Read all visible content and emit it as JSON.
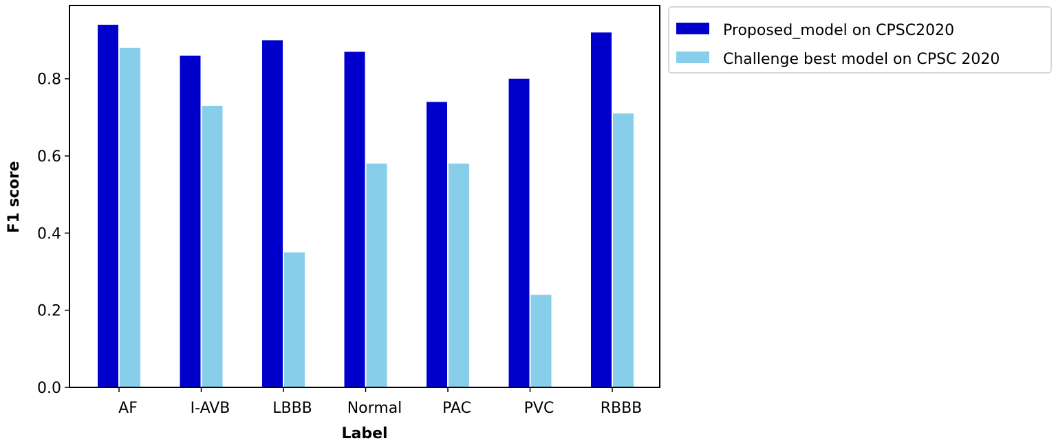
{
  "chart_data": {
    "type": "bar",
    "categories": [
      "AF",
      "I-AVB",
      "LBBB",
      "Normal",
      "PAC",
      "PVC",
      "RBBB"
    ],
    "series": [
      {
        "name": "Proposed_model on CPSC2020",
        "color": "#0000cd",
        "values": [
          0.94,
          0.86,
          0.9,
          0.87,
          0.74,
          0.8,
          0.92
        ]
      },
      {
        "name": "Challenge best model on CPSC 2020",
        "color": "#87ceeb",
        "values": [
          0.88,
          0.73,
          0.35,
          0.58,
          0.58,
          0.24,
          0.71
        ]
      }
    ],
    "xlabel": "Label",
    "ylabel": "F1 score",
    "ylim": [
      0,
      0.99
    ],
    "yticks": [
      "0.0",
      "0.2",
      "0.4",
      "0.6",
      "0.8"
    ],
    "grid": false,
    "legend_position": "outside-top-right"
  }
}
